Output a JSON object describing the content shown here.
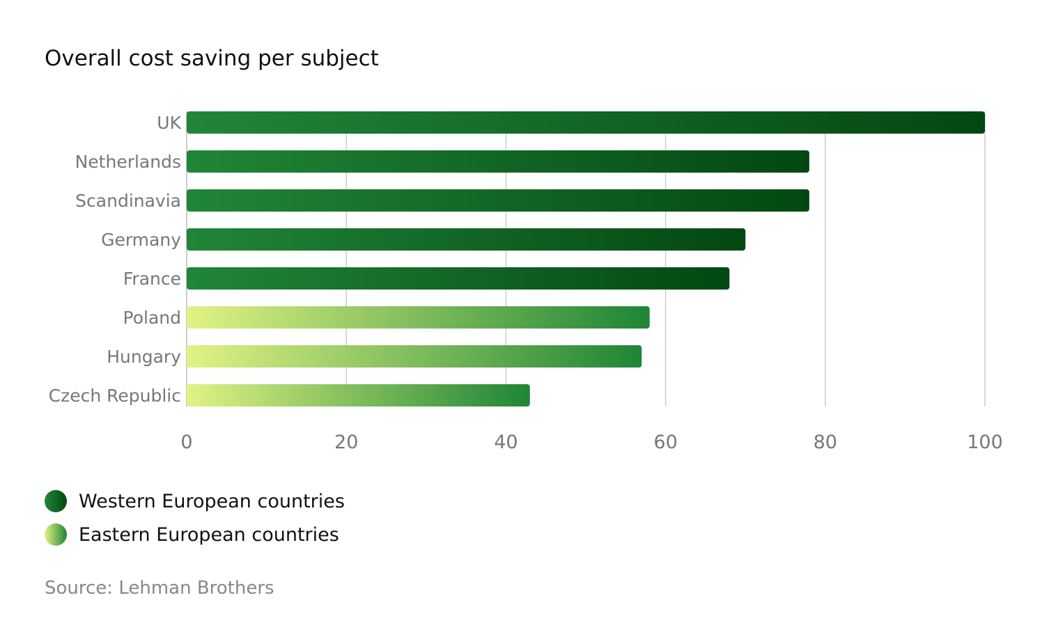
{
  "chart_data": {
    "type": "bar",
    "orientation": "horizontal",
    "title": "Overall cost saving per subject",
    "categories": [
      "UK",
      "Netherlands",
      "Scandinavia",
      "Germany",
      "France",
      "Poland",
      "Hungary",
      "Czech Republic"
    ],
    "values": [
      100,
      78,
      78,
      70,
      68,
      58,
      57,
      43
    ],
    "groups": [
      "western",
      "western",
      "western",
      "western",
      "western",
      "eastern",
      "eastern",
      "eastern"
    ],
    "xlim": [
      0,
      100
    ],
    "xticks": [
      "0",
      "20",
      "40",
      "60",
      "80",
      "100"
    ],
    "grid": "vertical",
    "legend_position": "bottom-left",
    "legend": [
      {
        "key": "western",
        "label": "Western European countries",
        "color_start": "#218638",
        "color_end": "#034712"
      },
      {
        "key": "eastern",
        "label": "Eastern European countries",
        "color_start": "#e1f384",
        "color_end": "#1e8535"
      }
    ],
    "source": "Source: Lehman Brothers"
  },
  "colors": {
    "grid": "#cccccc",
    "axis_text": "#777777"
  }
}
